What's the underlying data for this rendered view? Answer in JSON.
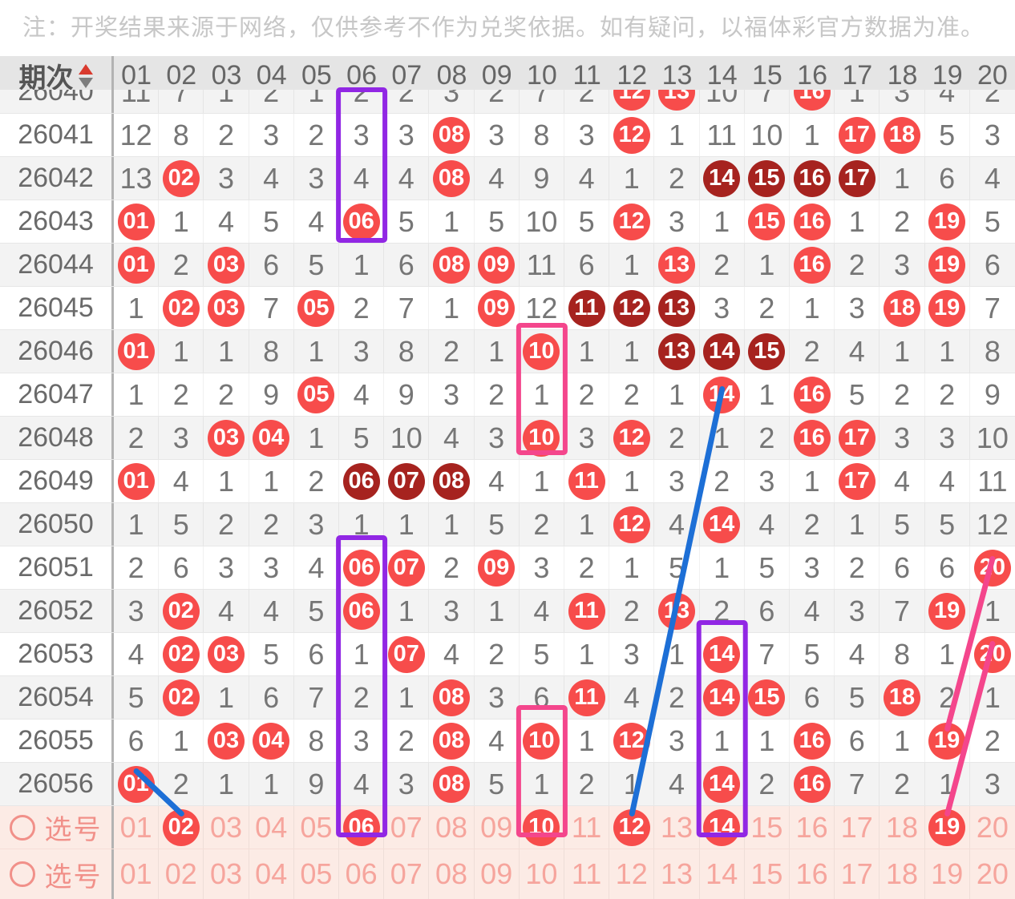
{
  "note": "注：开奖结果来源于网络，仅供参考不作为兑奖依据。如有疑问，以福体彩官方数据为准。",
  "table": {
    "period_header": "期次",
    "columns": [
      "01",
      "02",
      "03",
      "04",
      "05",
      "06",
      "07",
      "08",
      "09",
      "10",
      "11",
      "12",
      "13",
      "14",
      "15",
      "16",
      "17",
      "18",
      "19",
      "20"
    ],
    "rows": [
      {
        "period": "26040",
        "cut": true,
        "cells": [
          11,
          7,
          1,
          2,
          1,
          2,
          2,
          3,
          2,
          7,
          2,
          "R12",
          "R13",
          10,
          7,
          "R16",
          1,
          3,
          4,
          2
        ]
      },
      {
        "period": "26041",
        "cells": [
          12,
          8,
          2,
          3,
          2,
          3,
          3,
          "R08",
          3,
          8,
          3,
          "R12",
          1,
          11,
          10,
          1,
          "R17",
          "R18",
          5,
          3
        ]
      },
      {
        "period": "26042",
        "cells": [
          13,
          "R02",
          3,
          4,
          3,
          4,
          4,
          "R08",
          4,
          9,
          4,
          1,
          2,
          "D14",
          "D15",
          "D16",
          "D17",
          1,
          6,
          4
        ]
      },
      {
        "period": "26043",
        "cells": [
          "R01",
          1,
          4,
          5,
          4,
          "R06",
          5,
          1,
          5,
          10,
          5,
          "R12",
          3,
          1,
          "R15",
          "R16",
          1,
          2,
          "R19",
          5
        ]
      },
      {
        "period": "26044",
        "cells": [
          "R01",
          2,
          "R03",
          6,
          5,
          1,
          6,
          "R08",
          "R09",
          11,
          6,
          1,
          "R13",
          2,
          1,
          "R16",
          2,
          3,
          "R19",
          6
        ]
      },
      {
        "period": "26045",
        "cells": [
          1,
          "R02",
          "R03",
          7,
          "R05",
          2,
          7,
          1,
          "R09",
          12,
          "D11",
          "D12",
          "D13",
          3,
          2,
          1,
          3,
          "R18",
          "R19",
          7
        ]
      },
      {
        "period": "26046",
        "cells": [
          "R01",
          1,
          1,
          8,
          1,
          3,
          8,
          2,
          1,
          "R10",
          1,
          1,
          "D13",
          "D14",
          "D15",
          2,
          4,
          1,
          1,
          8
        ]
      },
      {
        "period": "26047",
        "cells": [
          1,
          2,
          2,
          9,
          "R05",
          4,
          9,
          3,
          2,
          1,
          2,
          2,
          1,
          "R14",
          1,
          "R16",
          5,
          2,
          2,
          9
        ]
      },
      {
        "period": "26048",
        "cells": [
          2,
          3,
          "R03",
          "R04",
          1,
          5,
          10,
          4,
          3,
          "R10",
          3,
          "R12",
          2,
          1,
          2,
          "R16",
          "R17",
          3,
          3,
          10
        ]
      },
      {
        "period": "26049",
        "cells": [
          "R01",
          4,
          1,
          1,
          2,
          "D06",
          "D07",
          "D08",
          4,
          1,
          "R11",
          1,
          3,
          2,
          3,
          1,
          "R17",
          4,
          4,
          11
        ]
      },
      {
        "period": "26050",
        "cells": [
          1,
          5,
          2,
          2,
          3,
          1,
          1,
          1,
          5,
          2,
          1,
          "R12",
          4,
          "R14",
          4,
          2,
          1,
          5,
          5,
          12
        ]
      },
      {
        "period": "26051",
        "cells": [
          2,
          6,
          3,
          3,
          4,
          "R06",
          "R07",
          2,
          "R09",
          3,
          2,
          1,
          5,
          1,
          5,
          3,
          2,
          6,
          6,
          "R20"
        ]
      },
      {
        "period": "26052",
        "cells": [
          3,
          "R02",
          4,
          4,
          5,
          "R06",
          1,
          3,
          1,
          4,
          "R11",
          2,
          "R13",
          2,
          6,
          4,
          3,
          7,
          "R19",
          1
        ]
      },
      {
        "period": "26053",
        "cells": [
          4,
          "R02",
          "R03",
          5,
          6,
          1,
          "R07",
          4,
          2,
          5,
          1,
          3,
          1,
          "R14",
          7,
          5,
          4,
          8,
          1,
          "R20"
        ]
      },
      {
        "period": "26054",
        "cells": [
          5,
          "R02",
          1,
          6,
          7,
          2,
          1,
          "R08",
          3,
          6,
          "R11",
          4,
          2,
          "R14",
          "R15",
          6,
          5,
          "R18",
          2,
          1
        ]
      },
      {
        "period": "26055",
        "cells": [
          6,
          1,
          "R03",
          "R04",
          8,
          3,
          2,
          "R08",
          4,
          "R10",
          1,
          "R12",
          3,
          1,
          1,
          "R16",
          6,
          1,
          "R19",
          2
        ]
      },
      {
        "period": "26056",
        "cells": [
          "R01",
          2,
          1,
          1,
          9,
          4,
          3,
          "R08",
          5,
          1,
          2,
          1,
          4,
          "R14",
          2,
          "R16",
          7,
          2,
          1,
          3
        ]
      }
    ]
  },
  "pick_rows": [
    {
      "label": "选号",
      "cells": [
        "01",
        "R02",
        "03",
        "04",
        "05",
        "R06",
        "07",
        "08",
        "09",
        "R10",
        "11",
        "R12",
        "13",
        "R14",
        "15",
        "16",
        "17",
        "18",
        "R19",
        "20"
      ]
    },
    {
      "label": "选号",
      "cells": [
        "01",
        "02",
        "03",
        "04",
        "05",
        "06",
        "07",
        "08",
        "09",
        "10",
        "11",
        "12",
        "13",
        "14",
        "15",
        "16",
        "17",
        "18",
        "19",
        "20"
      ]
    }
  ],
  "colors": {
    "ball_red": "#f74c4b",
    "ball_dark": "#a6231f",
    "box_purple": "#9127e4",
    "box_pink": "#f4468c",
    "line_blue": "#1d6fd6",
    "line_pink": "#f4468c"
  },
  "annotations": {
    "boxes": [
      {
        "name": "purple-box-col06-top",
        "color_key": "box_purple",
        "col": "06",
        "from": "26040",
        "to": "26043"
      },
      {
        "name": "purple-box-col06-bottom",
        "color_key": "box_purple",
        "col": "06",
        "from": "26051",
        "to": "pick1"
      },
      {
        "name": "purple-box-col14",
        "color_key": "box_purple",
        "col": "14",
        "from": "26053",
        "to": "pick1"
      },
      {
        "name": "pink-box-col10-top",
        "color_key": "box_pink",
        "col": "10",
        "from": "26046",
        "to": "26048"
      },
      {
        "name": "pink-box-col10-bottom",
        "color_key": "box_pink",
        "col": "10",
        "from": "26055",
        "to": "pick1"
      }
    ],
    "lines": [
      {
        "name": "blue-trend-line-long",
        "color_key": "line_blue",
        "from": {
          "row": "26047",
          "col": "14"
        },
        "to": {
          "row": "pick1",
          "col": "12"
        }
      },
      {
        "name": "blue-trend-line-short",
        "color_key": "line_blue",
        "from": {
          "row": "26056",
          "col": "01"
        },
        "to": {
          "row": "pick1",
          "col": "02"
        }
      },
      {
        "name": "pink-trend-line-top",
        "color_key": "line_pink",
        "from": {
          "row": "26051",
          "col": "20"
        },
        "to": {
          "row": "26055",
          "col": "19"
        }
      },
      {
        "name": "pink-trend-line-bottom",
        "color_key": "line_pink",
        "from": {
          "row": "26053",
          "col": "20"
        },
        "to": {
          "row": "pick1",
          "col": "19"
        }
      }
    ]
  }
}
